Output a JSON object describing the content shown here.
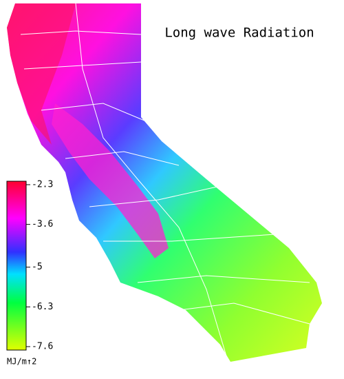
{
  "title": "Long wave Radiation",
  "colorbar": {
    "range": [
      -7.6,
      -2.3
    ],
    "ticks": [
      -2.3,
      -3.6,
      -5.0,
      -6.3,
      -7.6
    ],
    "unit": "MJ/m↑2"
  }
}
